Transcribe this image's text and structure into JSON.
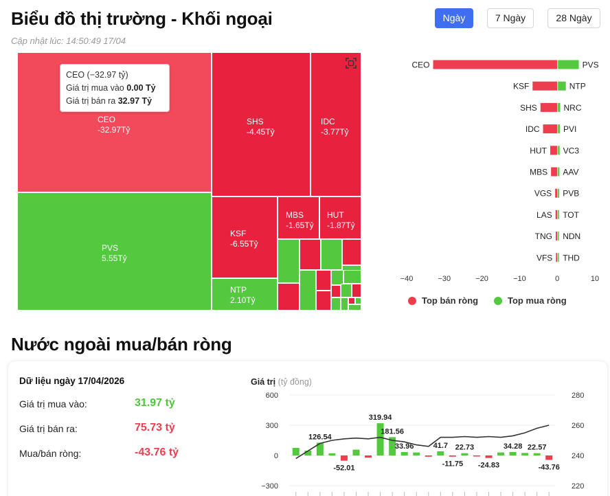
{
  "header": {
    "title": "Biểu đồ thị trường - Khối ngoại",
    "updated": "Cập nhật lúc: 14:50:49 17/04",
    "tabs": [
      {
        "label": "Ngày",
        "active": true
      },
      {
        "label": "7 Ngày",
        "active": false
      },
      {
        "label": "28 Ngày",
        "active": false
      }
    ]
  },
  "icons": {
    "focus": "fullscreen-focus-icon"
  },
  "tooltip": {
    "line1": "CEO (−32.97 tỷ)",
    "buy_label": "Giá trị mua vào ",
    "buy_value": "0.00 Tỷ",
    "sell_label": "Giá trị bán ra ",
    "sell_value": "32.97 Tỷ"
  },
  "colors": {
    "sell": "#ee3d4f",
    "buy": "#54c93f",
    "accent": "#3f6ff0",
    "line": "#333333"
  },
  "chart_data": [
    {
      "type": "heatmap",
      "cells": [
        {
          "ticker": "CEO",
          "value": -32.97,
          "label": "-32.97Tỷ"
        },
        {
          "ticker": "PVS",
          "value": 5.55,
          "label": "5.55Tỷ"
        },
        {
          "ticker": "SHS",
          "value": -4.45,
          "label": "-4.45Tỷ"
        },
        {
          "ticker": "IDC",
          "value": -3.77,
          "label": "-3.77Tỷ"
        },
        {
          "ticker": "KSF",
          "value": -6.55,
          "label": "-6.55Tỷ"
        },
        {
          "ticker": "NTP",
          "value": 2.1,
          "label": "2.10Tỷ"
        },
        {
          "ticker": "MBS",
          "value": -1.65,
          "label": "-1.65Tỷ"
        },
        {
          "ticker": "HUT",
          "value": -1.87,
          "label": "-1.87Tỷ"
        }
      ]
    },
    {
      "type": "bar",
      "sell_tickers": [
        "CEO",
        "KSF",
        "SHS",
        "IDC",
        "HUT",
        "MBS",
        "VGS",
        "LAS",
        "TNG",
        "VFS"
      ],
      "sell_values": [
        -32.97,
        -6.55,
        -4.45,
        -3.77,
        -1.87,
        -1.65,
        -0.55,
        -0.45,
        -0.4,
        -0.35
      ],
      "buy_tickers": [
        "PVS",
        "NTP",
        "NRC",
        "PVI",
        "VC3",
        "AAV",
        "PVB",
        "TOT",
        "NDN",
        "THD"
      ],
      "buy_values": [
        5.55,
        2.1,
        0.6,
        0.5,
        0.45,
        0.4,
        0.35,
        0.3,
        0.25,
        0.2
      ],
      "xlim": [
        -40,
        10
      ],
      "xticks": [
        "−40",
        "−30",
        "−20",
        "−10",
        "0",
        "10"
      ],
      "legend": [
        {
          "name": "Top bán ròng",
          "color": "#ee3d4f"
        },
        {
          "name": "Top mua ròng",
          "color": "#54c93f"
        }
      ]
    },
    {
      "type": "bar",
      "title": "Giá trị",
      "unit": "(tỷ đồng)",
      "values": [
        75,
        48,
        126.54,
        22,
        -52.01,
        58,
        -22,
        319.94,
        181.56,
        33.96,
        30,
        -12,
        41.7,
        -11.75,
        22.73,
        -8,
        -24.83,
        30,
        34.28,
        25,
        22.57,
        -43.76
      ],
      "labels": [
        "",
        "",
        "126.54",
        "",
        "-52.01",
        "",
        "",
        "319.94",
        "181.56",
        "33.96",
        "",
        "",
        "41.7",
        "-11.75",
        "22.73",
        "",
        "-24.83",
        "",
        "34.28",
        "",
        "22.57",
        "-43.76"
      ],
      "line": [
        238,
        243,
        248,
        250,
        251,
        251.5,
        251,
        252,
        250,
        249,
        247,
        246,
        252,
        252,
        252.5,
        252,
        252.5,
        252,
        253,
        255,
        258,
        260
      ],
      "ylim": [
        -300,
        600
      ],
      "yticks": [
        "600",
        "300",
        "0",
        "−300"
      ],
      "y2lim": [
        220,
        280
      ],
      "y2ticks": [
        "280",
        "260",
        "240",
        "220"
      ]
    }
  ],
  "stats": {
    "title": "Dữ liệu ngày 17/04/2026",
    "rows": [
      {
        "label": "Giá trị mua vào:",
        "value": "31.97 tỷ",
        "tone": "green"
      },
      {
        "label": "Giá trị bán ra:",
        "value": "75.73 tỷ",
        "tone": "red"
      },
      {
        "label": "Mua/bán ròng:",
        "value": "-43.76 tỷ",
        "tone": "red"
      }
    ]
  },
  "section2": {
    "title": "Nước ngoài mua/bán ròng"
  }
}
